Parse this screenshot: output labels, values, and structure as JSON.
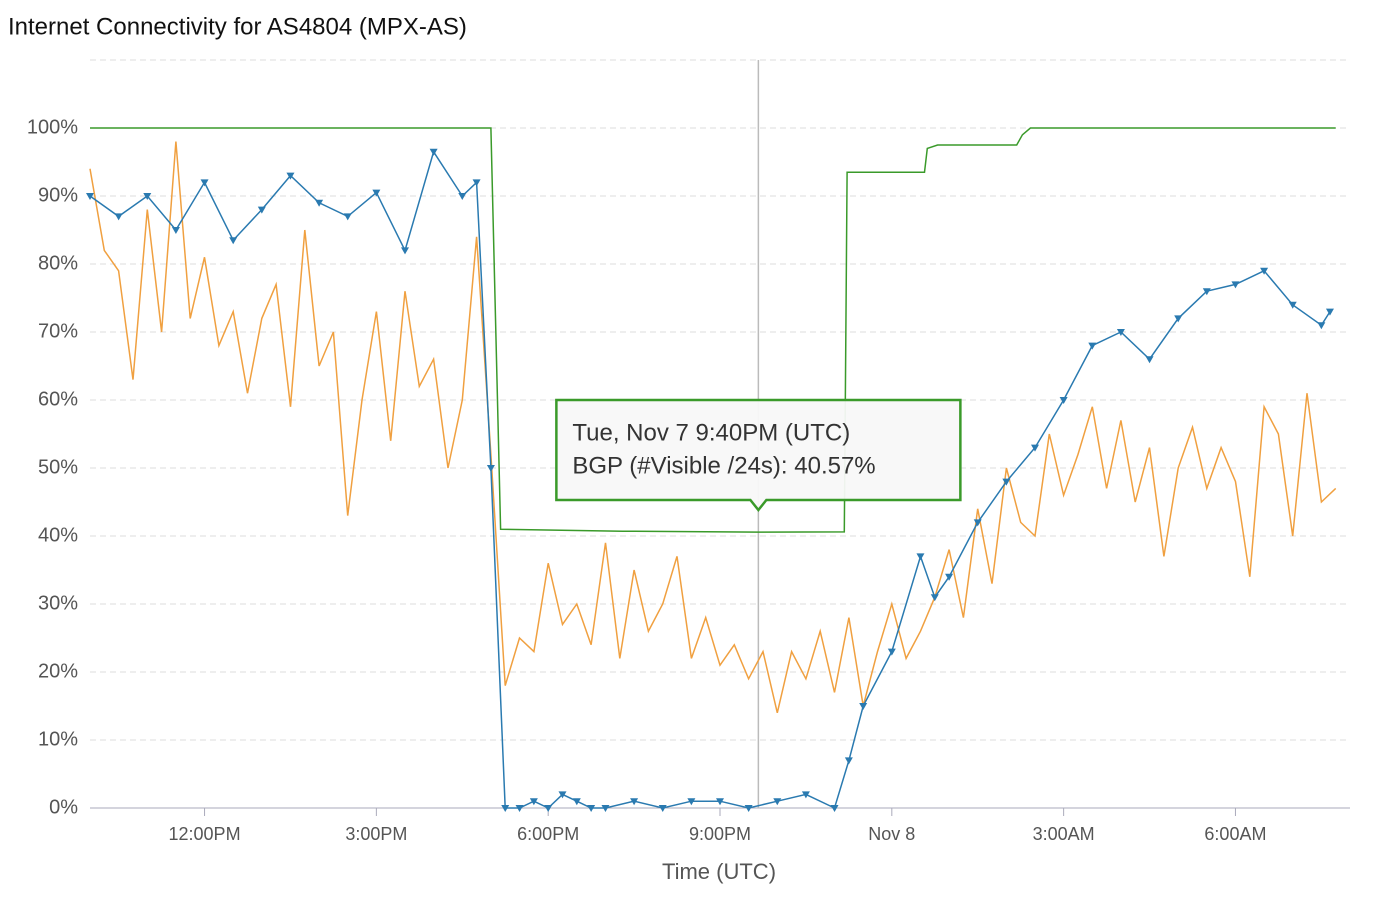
{
  "chart_data": {
    "type": "line",
    "title": "Internet Connectivity for AS4804 (MPX-AS)",
    "x_label": "Time (UTC)",
    "xlim": [
      10,
      32
    ],
    "xticks": [
      {
        "value": 12,
        "label": "12:00PM"
      },
      {
        "value": 15,
        "label": "3:00PM"
      },
      {
        "value": 18,
        "label": "6:00PM"
      },
      {
        "value": 21,
        "label": "9:00PM"
      },
      {
        "value": 24,
        "label": "Nov 8"
      },
      {
        "value": 27,
        "label": "3:00AM"
      },
      {
        "value": 30,
        "label": "6:00AM"
      }
    ],
    "ylim": [
      0,
      110
    ],
    "yticks": [
      {
        "value": 0,
        "label": "0%"
      },
      {
        "value": 10,
        "label": "10%"
      },
      {
        "value": 20,
        "label": "20%"
      },
      {
        "value": 30,
        "label": "30%"
      },
      {
        "value": 40,
        "label": "40%"
      },
      {
        "value": 50,
        "label": "50%"
      },
      {
        "value": 60,
        "label": "60%"
      },
      {
        "value": 70,
        "label": "70%"
      },
      {
        "value": 80,
        "label": "80%"
      },
      {
        "value": 90,
        "label": "90%"
      },
      {
        "value": 100,
        "label": "100%"
      }
    ],
    "grid": true,
    "series": [
      {
        "color": "#f0a040",
        "x": [
          10,
          10.25,
          10.5,
          10.75,
          11,
          11.25,
          11.5,
          11.75,
          12,
          12.25,
          12.5,
          12.75,
          13,
          13.25,
          13.5,
          13.75,
          14,
          14.25,
          14.5,
          14.75,
          15,
          15.25,
          15.5,
          15.75,
          16,
          16.25,
          16.5,
          16.75,
          17,
          17.25,
          17.5,
          17.75,
          18,
          18.25,
          18.5,
          18.75,
          19,
          19.25,
          19.5,
          19.75,
          20,
          20.25,
          20.5,
          20.75,
          21,
          21.25,
          21.5,
          21.75,
          22,
          22.25,
          22.5,
          22.75,
          23,
          23.25,
          23.5,
          23.75,
          24,
          24.25,
          24.5,
          24.75,
          25,
          25.25,
          25.5,
          25.75,
          26,
          26.25,
          26.5,
          26.75,
          27,
          27.25,
          27.5,
          27.75,
          28,
          28.25,
          28.5,
          28.75,
          29,
          29.25,
          29.5,
          29.75,
          30,
          30.25,
          30.5,
          30.75,
          31,
          31.25,
          31.5,
          31.75
        ],
        "values": [
          94,
          82,
          79,
          63,
          88,
          70,
          98,
          72,
          81,
          68,
          73,
          61,
          72,
          77,
          59,
          85,
          65,
          70,
          43,
          60,
          73,
          54,
          76,
          62,
          66,
          50,
          60,
          84,
          52,
          18,
          25,
          23,
          36,
          27,
          30,
          24,
          39,
          22,
          35,
          26,
          30,
          37,
          22,
          28,
          21,
          24,
          19,
          23,
          14,
          23,
          19,
          26,
          17,
          28,
          15,
          23,
          30,
          22,
          26,
          31,
          38,
          28,
          44,
          33,
          50,
          42,
          40,
          55,
          46,
          52,
          59,
          47,
          57,
          45,
          53,
          37,
          50,
          56,
          47,
          53,
          48,
          34,
          59,
          55,
          40,
          61,
          45,
          47
        ]
      },
      {
        "color": "#2a7ab0",
        "markers": true,
        "x": [
          10,
          10.5,
          11,
          11.5,
          12,
          12.5,
          13,
          13.5,
          14,
          14.5,
          15,
          15.5,
          16,
          16.5,
          16.75,
          17,
          17.25,
          17.5,
          17.75,
          18,
          18.25,
          18.5,
          18.75,
          19,
          19.5,
          20,
          20.5,
          21,
          21.5,
          22,
          22.5,
          23,
          23.25,
          23.5,
          24,
          24.5,
          24.75,
          25,
          25.5,
          26,
          26.5,
          27,
          27.5,
          28,
          28.5,
          29,
          29.5,
          30,
          30.5,
          31,
          31.5,
          31.65
        ],
        "values": [
          90,
          87,
          90,
          85,
          92,
          83.5,
          88,
          93,
          89,
          87,
          90.5,
          82,
          96.5,
          90,
          92,
          50,
          0,
          0,
          1,
          0,
          2,
          1,
          0,
          0,
          1,
          0,
          1,
          1,
          0,
          1,
          2,
          0,
          7,
          15,
          23,
          37,
          31,
          34,
          42,
          48,
          53,
          60,
          68,
          70,
          66,
          72,
          76,
          77,
          79,
          74,
          71,
          73
        ]
      },
      {
        "color": "#3a9a2a",
        "x": [
          10,
          17,
          17.17,
          19.3,
          21.67,
          23.17,
          23.22,
          24.57,
          24.62,
          24.8,
          26.18,
          26.28,
          26.42,
          31.75
        ],
        "values": [
          100,
          100,
          41,
          40.7,
          40.57,
          40.6,
          93.5,
          93.5,
          97,
          97.5,
          97.5,
          99,
          100,
          100
        ]
      }
    ],
    "tooltip": {
      "x": 21.67,
      "date": "Tue, Nov 7 9:40PM (UTC)",
      "text": "BGP (#Visible /24s): 40.57%"
    }
  }
}
